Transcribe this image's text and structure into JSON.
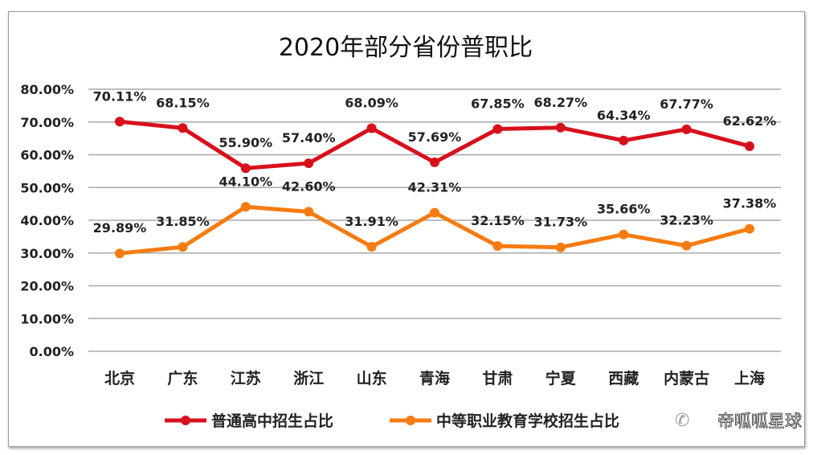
{
  "chart_data": {
    "type": "line",
    "title": "2020年部分省份普职比",
    "categories": [
      "北京",
      "广东",
      "江苏",
      "浙江",
      "山东",
      "青海",
      "甘肃",
      "宁夏",
      "西藏",
      "内蒙古",
      "上海"
    ],
    "series": [
      {
        "name": "普通高中招生占比",
        "color": "#d7111c",
        "values": [
          70.11,
          68.15,
          55.9,
          57.4,
          68.09,
          57.69,
          67.85,
          68.27,
          64.34,
          67.77,
          62.62
        ],
        "labels": [
          "70.11%",
          "68.15%",
          "55.90%",
          "57.40%",
          "68.09%",
          "57.69%",
          "67.85%",
          "68.27%",
          "64.34%",
          "67.77%",
          "62.62%"
        ]
      },
      {
        "name": "中等职业教育学校招生占比",
        "color": "#f57c12",
        "values": [
          29.89,
          31.85,
          44.1,
          42.6,
          31.91,
          42.31,
          32.15,
          31.73,
          35.66,
          32.23,
          37.38
        ],
        "labels": [
          "29.89%",
          "31.85%",
          "44.10%",
          "42.60%",
          "31.91%",
          "42.31%",
          "32.15%",
          "31.73%",
          "35.66%",
          "32.23%",
          "37.38%"
        ]
      }
    ],
    "ylim": [
      0,
      80
    ],
    "yticks": [
      "0.00%",
      "10.00%",
      "20.00%",
      "30.00%",
      "40.00%",
      "50.00%",
      "60.00%",
      "70.00%",
      "80.00%"
    ],
    "grid": true,
    "legend_position": "bottom"
  },
  "watermark": "帝呱呱星球"
}
